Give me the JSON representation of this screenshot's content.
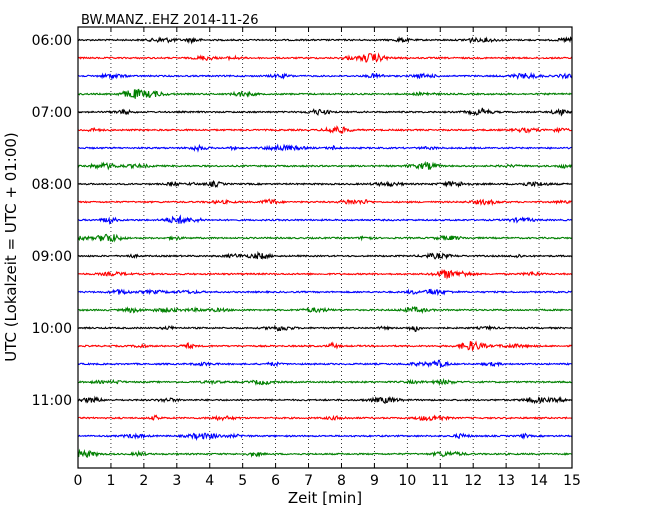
{
  "chart_data": {
    "type": "line",
    "title": "BW.MANZ..EHZ 2014-11-26",
    "xlabel": "Zeit  [min]",
    "ylabel": "UTC (Lokalzeit = UTC + 01:00)",
    "xlim": [
      0,
      15
    ],
    "x_ticks": [
      0,
      1,
      2,
      3,
      4,
      5,
      6,
      7,
      8,
      9,
      10,
      11,
      12,
      13,
      14,
      15
    ],
    "x_tick_labels": [
      "0",
      "1",
      "2",
      "3",
      "4",
      "5",
      "6",
      "7",
      "8",
      "9",
      "10",
      "11",
      "12",
      "13",
      "14",
      "15"
    ],
    "y_tick_labels": [
      "06:00",
      "07:00",
      "08:00",
      "09:00",
      "10:00",
      "11:00"
    ],
    "grid": "vertical dotted",
    "row_minutes": 15,
    "colors_cycle": [
      "#000000",
      "#ff0000",
      "#0000ff",
      "#008000"
    ],
    "series": [
      {
        "start": "06:00",
        "color": "#000000"
      },
      {
        "start": "06:15",
        "color": "#ff0000"
      },
      {
        "start": "06:30",
        "color": "#0000ff"
      },
      {
        "start": "06:45",
        "color": "#008000"
      },
      {
        "start": "07:00",
        "color": "#000000"
      },
      {
        "start": "07:15",
        "color": "#ff0000"
      },
      {
        "start": "07:30",
        "color": "#0000ff"
      },
      {
        "start": "07:45",
        "color": "#008000"
      },
      {
        "start": "08:00",
        "color": "#000000"
      },
      {
        "start": "08:15",
        "color": "#ff0000"
      },
      {
        "start": "08:30",
        "color": "#0000ff"
      },
      {
        "start": "08:45",
        "color": "#008000"
      },
      {
        "start": "09:00",
        "color": "#000000"
      },
      {
        "start": "09:15",
        "color": "#ff0000"
      },
      {
        "start": "09:30",
        "color": "#0000ff"
      },
      {
        "start": "09:45",
        "color": "#008000"
      },
      {
        "start": "10:00",
        "color": "#000000"
      },
      {
        "start": "10:15",
        "color": "#ff0000"
      },
      {
        "start": "10:30",
        "color": "#0000ff"
      },
      {
        "start": "10:45",
        "color": "#008000"
      },
      {
        "start": "11:00",
        "color": "#000000"
      },
      {
        "start": "11:15",
        "color": "#ff0000"
      },
      {
        "start": "11:30",
        "color": "#0000ff"
      },
      {
        "start": "11:45",
        "color": "#008000"
      }
    ]
  }
}
